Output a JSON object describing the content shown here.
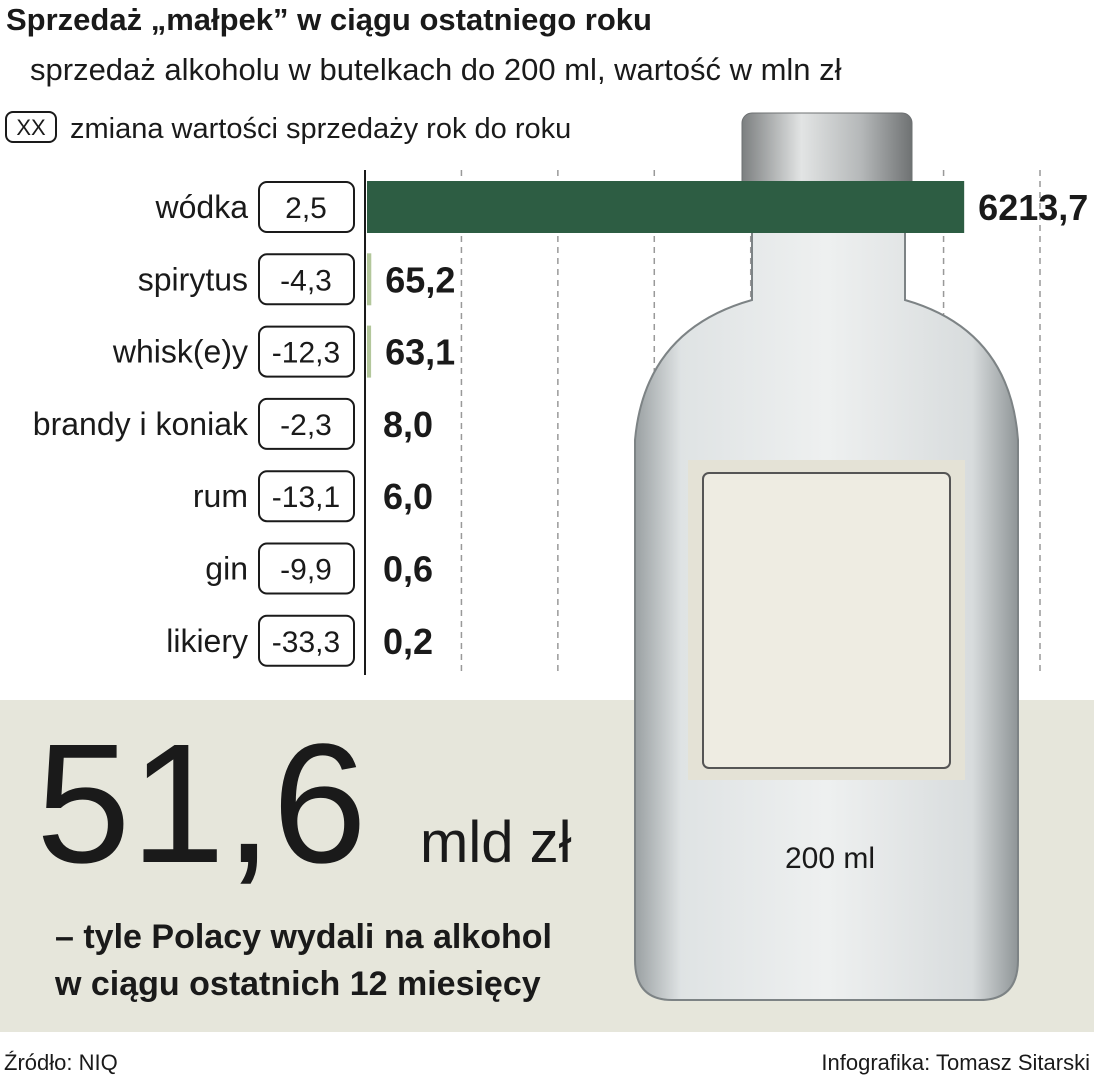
{
  "chart_data": {
    "type": "bar",
    "orientation": "horizontal",
    "title": "Sprzedaż „małpek” w ciągu ostatniego roku",
    "subtitle": "sprzedaż alkoholu w butelkach do 200 ml, wartość w mln zł",
    "legend": {
      "box": "XX",
      "text": "zmiana wartości sprzedaży rok do roku"
    },
    "categories": [
      "wódka",
      "spirytus",
      "whisk(e)y",
      "brandy i koniak",
      "rum",
      "gin",
      "likiery"
    ],
    "values": [
      6213.7,
      65.2,
      63.1,
      8.0,
      6.0,
      0.6,
      0.2
    ],
    "value_labels": [
      "6213,7",
      "65,2",
      "63,1",
      "8,0",
      "6,0",
      "0,6",
      "0,2"
    ],
    "colors": [
      "#2d5d43",
      "#b3c79b",
      "#b3c79b",
      "#b3c79b",
      "#b3c79b",
      "#b3c79b",
      "#b3c79b"
    ],
    "changes": {
      "values": [
        2.5,
        -4.3,
        -12.3,
        -2.3,
        -13.1,
        -9.9,
        -33.3
      ],
      "value_labels": [
        "2,5",
        "-4,3",
        "-12,3",
        "-2,3",
        "-13,1",
        "-9,9",
        "-33,3"
      ]
    },
    "xlim": [
      0,
      7000
    ],
    "xticks": [
      0,
      1000,
      2000,
      3000,
      4000,
      5000,
      6000,
      7000
    ],
    "grid": true
  },
  "highlight": {
    "number": "51,6",
    "unit": "mld zł",
    "text": [
      "– tyle Polacy wydali na alkohol",
      "w ciągu ostatnich 12 miesięcy"
    ]
  },
  "bottle_label": "200 ml",
  "footer": {
    "source": "Źródło: NIQ",
    "credit": "Infografika: Tomasz Sitarski"
  }
}
